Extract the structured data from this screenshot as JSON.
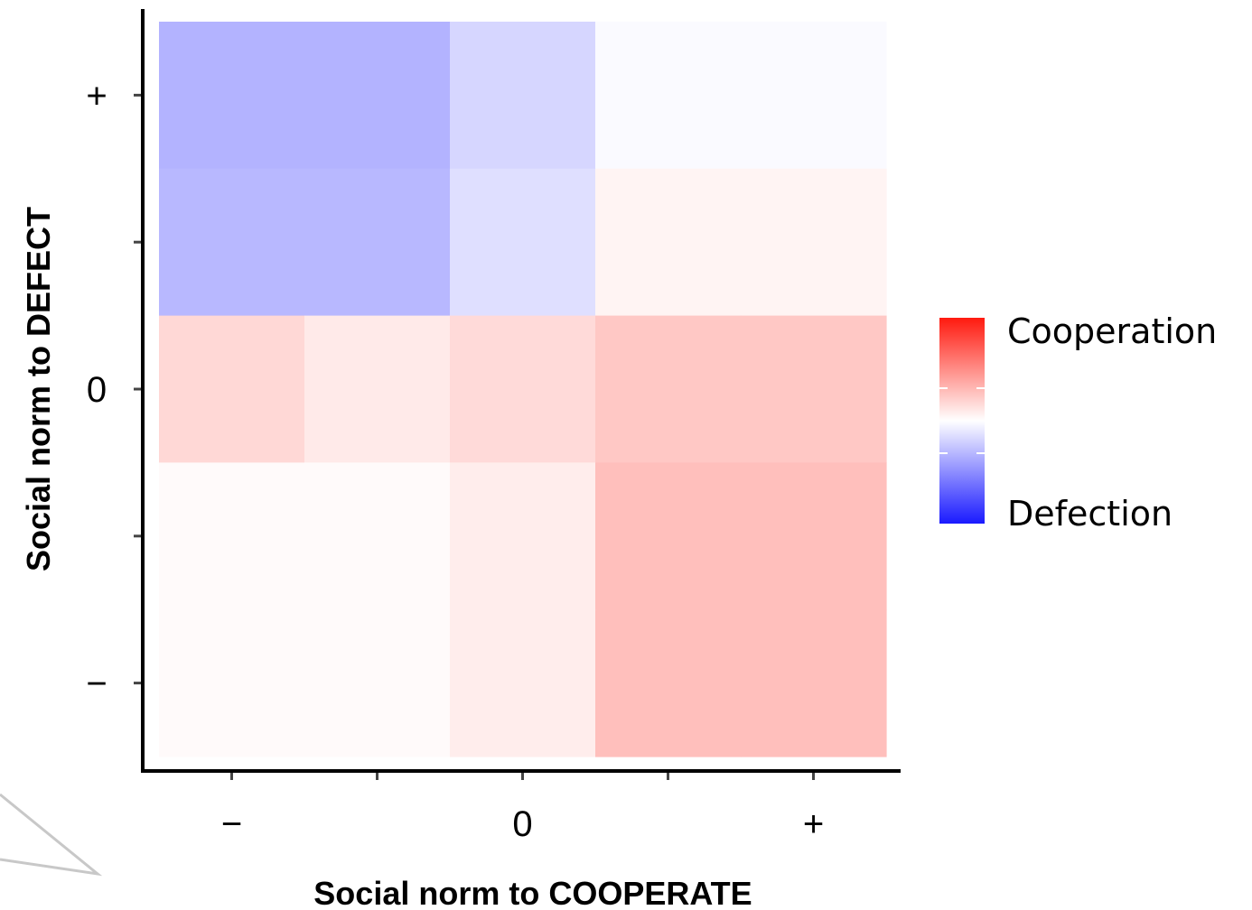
{
  "chart_data": {
    "type": "heatmap",
    "title": "",
    "xlabel": "Social norm to COOPERATE",
    "ylabel": "Social norm to DEFECT",
    "x_levels": 5,
    "y_levels": 5,
    "x_tick_labels": [
      {
        "level": 1,
        "label": "−"
      },
      {
        "level": 3,
        "label": "0"
      },
      {
        "level": 5,
        "label": "+"
      }
    ],
    "y_tick_labels": [
      {
        "level": 1,
        "label": "−"
      },
      {
        "level": 3,
        "label": "0"
      },
      {
        "level": 5,
        "label": "+"
      }
    ],
    "cells": [
      {
        "x": 1,
        "y": 5,
        "value": -0.33
      },
      {
        "x": 2,
        "y": 5,
        "value": -0.33
      },
      {
        "x": 3,
        "y": 5,
        "value": -0.18
      },
      {
        "x": 4,
        "y": 5,
        "value": -0.02
      },
      {
        "x": 5,
        "y": 5,
        "value": -0.02
      },
      {
        "x": 1,
        "y": 4,
        "value": -0.31
      },
      {
        "x": 2,
        "y": 4,
        "value": -0.31
      },
      {
        "x": 3,
        "y": 4,
        "value": -0.14
      },
      {
        "x": 4,
        "y": 4,
        "value": 0.05
      },
      {
        "x": 5,
        "y": 4,
        "value": 0.05
      },
      {
        "x": 1,
        "y": 3,
        "value": 0.17
      },
      {
        "x": 2,
        "y": 3,
        "value": 0.09
      },
      {
        "x": 3,
        "y": 3,
        "value": 0.16
      },
      {
        "x": 4,
        "y": 3,
        "value": 0.24
      },
      {
        "x": 5,
        "y": 3,
        "value": 0.24
      },
      {
        "x": 1,
        "y": 2,
        "value": 0.02
      },
      {
        "x": 2,
        "y": 2,
        "value": 0.02
      },
      {
        "x": 3,
        "y": 2,
        "value": 0.08
      },
      {
        "x": 4,
        "y": 2,
        "value": 0.28
      },
      {
        "x": 5,
        "y": 2,
        "value": 0.28
      },
      {
        "x": 1,
        "y": 1,
        "value": 0.02
      },
      {
        "x": 2,
        "y": 1,
        "value": 0.02
      },
      {
        "x": 3,
        "y": 1,
        "value": 0.08
      },
      {
        "x": 4,
        "y": 1,
        "value": 0.28
      },
      {
        "x": 5,
        "y": 1,
        "value": 0.28
      }
    ],
    "value_range": [
      -1,
      1
    ],
    "colors": {
      "low": "#1a1aff",
      "mid": "#ffffff",
      "high": "#ff1a0f"
    },
    "legend": {
      "high_label": "Cooperation",
      "low_label": "Defection",
      "position": "right"
    },
    "grid": false
  }
}
